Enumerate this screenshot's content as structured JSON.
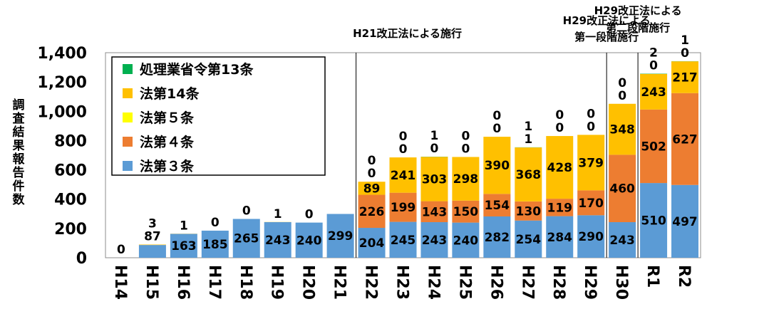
{
  "chart_data": {
    "type": "bar",
    "stacked": true,
    "ylabel": "調査結果報告件数",
    "ylim": [
      0,
      1400
    ],
    "yticks": [
      0,
      200,
      400,
      600,
      800,
      1000,
      1200,
      1400
    ],
    "ytick_labels": [
      "0",
      "200",
      "400",
      "600",
      "800",
      "1,000",
      "1,200",
      "1,400"
    ],
    "categories": [
      "H14",
      "H15",
      "H16",
      "H17",
      "H18",
      "H19",
      "H20",
      "H21",
      "H22",
      "H23",
      "H24",
      "H25",
      "H26",
      "H27",
      "H28",
      "H29",
      "H30",
      "R1",
      "R2"
    ],
    "series": [
      {
        "name": "法第３条",
        "color": "#5b9bd5",
        "values": [
          0,
          87,
          163,
          185,
          265,
          243,
          240,
          299,
          204,
          245,
          243,
          240,
          282,
          254,
          284,
          290,
          243,
          510,
          497
        ]
      },
      {
        "name": "法第４条",
        "color": "#ed7d31",
        "values": [
          null,
          null,
          null,
          null,
          null,
          null,
          null,
          null,
          226,
          199,
          143,
          150,
          154,
          130,
          119,
          170,
          460,
          502,
          627
        ]
      },
      {
        "name": "法第５条",
        "color": "#ffff00",
        "values": [
          null,
          null,
          null,
          null,
          null,
          null,
          null,
          null,
          0,
          0,
          0,
          0,
          0,
          1,
          0,
          0,
          0,
          0,
          0
        ]
      },
      {
        "name": "法第14条",
        "color": "#ffc000",
        "values": [
          null,
          3,
          1,
          0,
          0,
          1,
          0,
          null,
          89,
          241,
          303,
          298,
          390,
          368,
          428,
          379,
          348,
          243,
          217
        ]
      },
      {
        "name": "処理業省令第13条",
        "color": "#00b050",
        "values": [
          null,
          null,
          null,
          null,
          null,
          null,
          null,
          null,
          0,
          0,
          1,
          0,
          0,
          1,
          0,
          0,
          0,
          2,
          1
        ]
      }
    ],
    "legend": {
      "placement": "top-left",
      "order": [
        "処理業省令第13条",
        "法第14条",
        "法第５条",
        "法第４条",
        "法第３条"
      ]
    },
    "annotations": [
      {
        "text": [
          "H21改正法による施行"
        ],
        "after_category": "H21"
      },
      {
        "text": [
          "H29改正法による",
          "第一段階施行"
        ],
        "after_category": "H29"
      },
      {
        "text": [
          "H29改正法による",
          "第二段階施行"
        ],
        "after_category": "H30"
      }
    ],
    "grid": false
  }
}
